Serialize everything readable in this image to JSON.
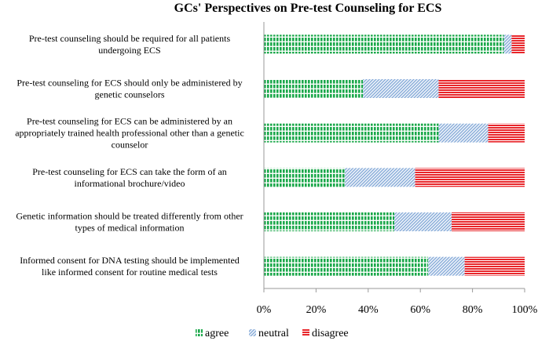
{
  "chart_data": {
    "type": "bar",
    "orientation": "horizontal",
    "stacked": "percent",
    "title": "GCs' Perspectives on Pre-test Counseling for ECS",
    "xlabel": "",
    "ylabel": "",
    "xlim": [
      0,
      100
    ],
    "x_ticks": [
      "0%",
      "20%",
      "40%",
      "60%",
      "80%",
      "100%"
    ],
    "x_tick_values": [
      0,
      20,
      40,
      60,
      80,
      100
    ],
    "grid": false,
    "legend_position": "bottom",
    "categories": [
      {
        "lines": [
          "Pre-test counseling should be required for all patients",
          "undergoing ECS"
        ]
      },
      {
        "lines": [
          "Pre-test counseling for ECS should only be administered by",
          "genetic counselors"
        ]
      },
      {
        "lines": [
          "Pre-test counseling for ECS can be administered by an",
          "appropriately trained health professional other than a genetic",
          "counselor"
        ]
      },
      {
        "lines": [
          "Pre-test counseling for ECS can take the form of an",
          "informational brochure/video"
        ]
      },
      {
        "lines": [
          "Genetic information should be treated differently from other",
          "types of medical information"
        ]
      },
      {
        "lines": [
          "Informed consent for DNA testing should be implemented",
          "like informed consent for routine medical tests"
        ]
      }
    ],
    "series": [
      {
        "name": "agree",
        "color": "#1aa84a",
        "pattern": "vertical-stripes",
        "values": [
          92,
          38,
          67,
          31,
          50,
          63
        ]
      },
      {
        "name": "neutral",
        "color": "#7fa6d6",
        "pattern": "diagonal-hatch",
        "values": [
          3,
          29,
          19,
          27,
          22,
          14
        ]
      },
      {
        "name": "disagree",
        "color": "#e8262b",
        "pattern": "horizontal-stripes",
        "values": [
          5,
          33,
          14,
          42,
          28,
          23
        ]
      }
    ]
  }
}
